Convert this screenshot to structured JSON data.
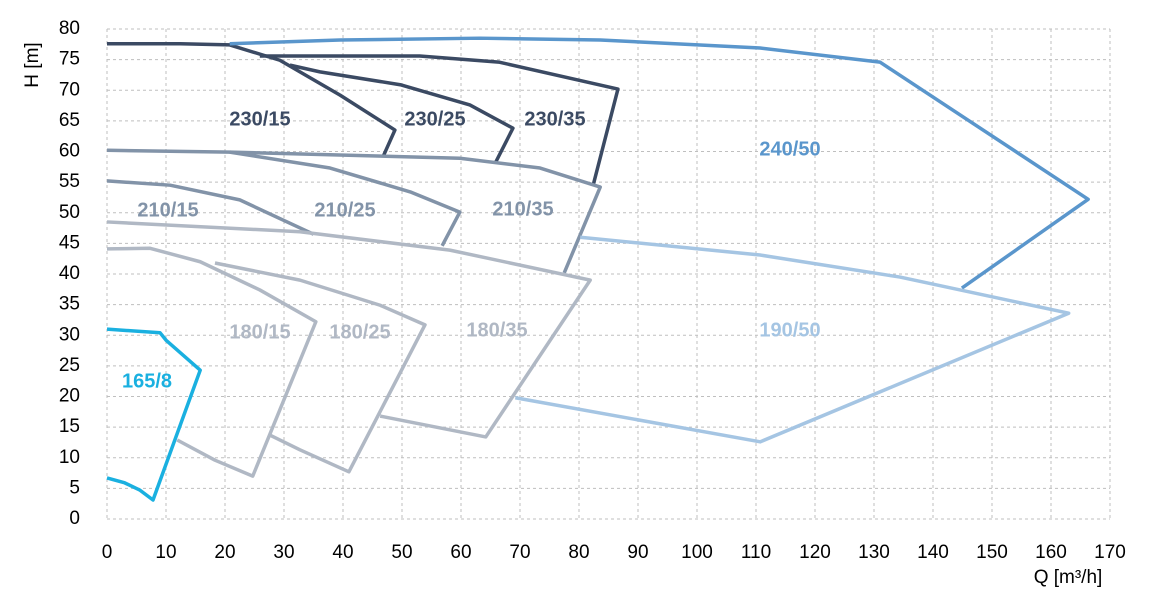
{
  "chart_data": {
    "type": "line",
    "x_label": "Q [m³/h]",
    "y_label": "H [m]",
    "xlim": [
      0,
      170
    ],
    "ylim": [
      0,
      80
    ],
    "xticks": [
      0,
      10,
      20,
      30,
      40,
      50,
      60,
      70,
      80,
      90,
      100,
      110,
      120,
      130,
      140,
      150,
      160,
      170
    ],
    "yticks": [
      0,
      5,
      10,
      15,
      20,
      25,
      30,
      35,
      40,
      45,
      50,
      55,
      60,
      65,
      70,
      75,
      80
    ],
    "grid": true,
    "series": [
      {
        "name": "230/15",
        "color": "#3b4a63",
        "x": [
          0,
          12.4,
          20.8,
          29.3,
          39.5,
          48.8,
          46.9
        ],
        "y": [
          77.6,
          77.6,
          77.4,
          74.9,
          69.2,
          63.5,
          59.4
        ]
      },
      {
        "name": "230/25",
        "color": "#3b4a63",
        "x": [
          31,
          36.1,
          49.7,
          61.5,
          68.8,
          65.8
        ],
        "y": [
          74.1,
          73,
          70.9,
          67.6,
          63.8,
          58.1
        ]
      },
      {
        "name": "230/35",
        "color": "#3b4a63",
        "x": [
          25.9,
          53,
          66.4,
          86.6,
          82.4
        ],
        "y": [
          75.6,
          75.6,
          74.6,
          70.2,
          54.5
        ]
      },
      {
        "name": "240/50",
        "color": "#5a96cc",
        "x": [
          20.8,
          39.5,
          63.2,
          83.6,
          110.7,
          131,
          166.3,
          144.9
        ],
        "y": [
          77.6,
          78.2,
          78.5,
          78.2,
          76.9,
          74.6,
          52.2,
          37.7
        ]
      },
      {
        "name": "210/15",
        "color": "#8293a8",
        "x": [
          0,
          10.7,
          22.5,
          35
        ],
        "y": [
          55.2,
          54.5,
          52.1,
          46.5
        ]
      },
      {
        "name": "210/25",
        "color": "#8293a8",
        "x": [
          20.8,
          37.8,
          51.4,
          59.8,
          56.8
        ],
        "y": [
          59.9,
          57.3,
          53.4,
          50.1,
          44.6
        ]
      },
      {
        "name": "210/35",
        "color": "#8293a8",
        "x": [
          0,
          20.8,
          59.8,
          73.4,
          83.6,
          77.5
        ],
        "y": [
          60.2,
          59.9,
          58.9,
          57.3,
          54.2,
          40.2
        ]
      },
      {
        "name": "180/15",
        "color": "#b0b8c4",
        "x": [
          0,
          7.3,
          15.8,
          25.9,
          35.4,
          24.7,
          18.3,
          11.9
        ],
        "y": [
          44.1,
          44.2,
          42,
          37.4,
          32.2,
          7,
          9.6,
          12.9
        ]
      },
      {
        "name": "180/25",
        "color": "#b0b8c4",
        "x": [
          18.3,
          32.7,
          46.3,
          53.9,
          41,
          32.7,
          27.6
        ],
        "y": [
          41.8,
          39,
          34.9,
          31.7,
          7.7,
          11.3,
          13.7
        ]
      },
      {
        "name": "180/35",
        "color": "#b0b8c4",
        "x": [
          0,
          32.7,
          58.1,
          81.9,
          64.2,
          46.3
        ],
        "y": [
          48.5,
          46.9,
          43.9,
          39,
          13.4,
          16.8
        ]
      },
      {
        "name": "190/50",
        "color": "#a5c5e3",
        "x": [
          80.2,
          110.7,
          134.4,
          163,
          110.7,
          69.2
        ],
        "y": [
          46,
          43.1,
          39.5,
          33.6,
          12.6,
          19.8
        ]
      },
      {
        "name": "165/8",
        "color": "#1ab0e0",
        "x": [
          0,
          9,
          10,
          15.8,
          7.8,
          5.6,
          3,
          0
        ],
        "y": [
          31,
          30.4,
          29.2,
          24.3,
          3.1,
          4.7,
          5.9,
          6.7
        ]
      }
    ]
  }
}
